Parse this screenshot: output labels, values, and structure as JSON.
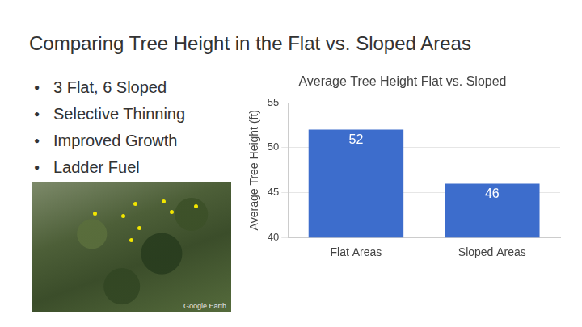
{
  "title": "Comparing Tree Height  in the Flat vs. Sloped Areas",
  "bullets": [
    "3 Flat, 6 Sloped",
    "Selective Thinning",
    "Improved Growth",
    "Ladder Fuel"
  ],
  "image_credit": "Google Earth",
  "chart_data": {
    "type": "bar",
    "title": "Average Tree Height Flat vs. Sloped",
    "y_label": "Average Tree Height (ft)",
    "categories": [
      "Flat Areas",
      "Sloped Areas"
    ],
    "values": [
      52,
      46
    ],
    "color": "#3d6dcc",
    "ylim": [
      40,
      55
    ],
    "yticks": [
      40,
      45,
      50,
      55
    ],
    "grid": true,
    "data_labels": true
  }
}
